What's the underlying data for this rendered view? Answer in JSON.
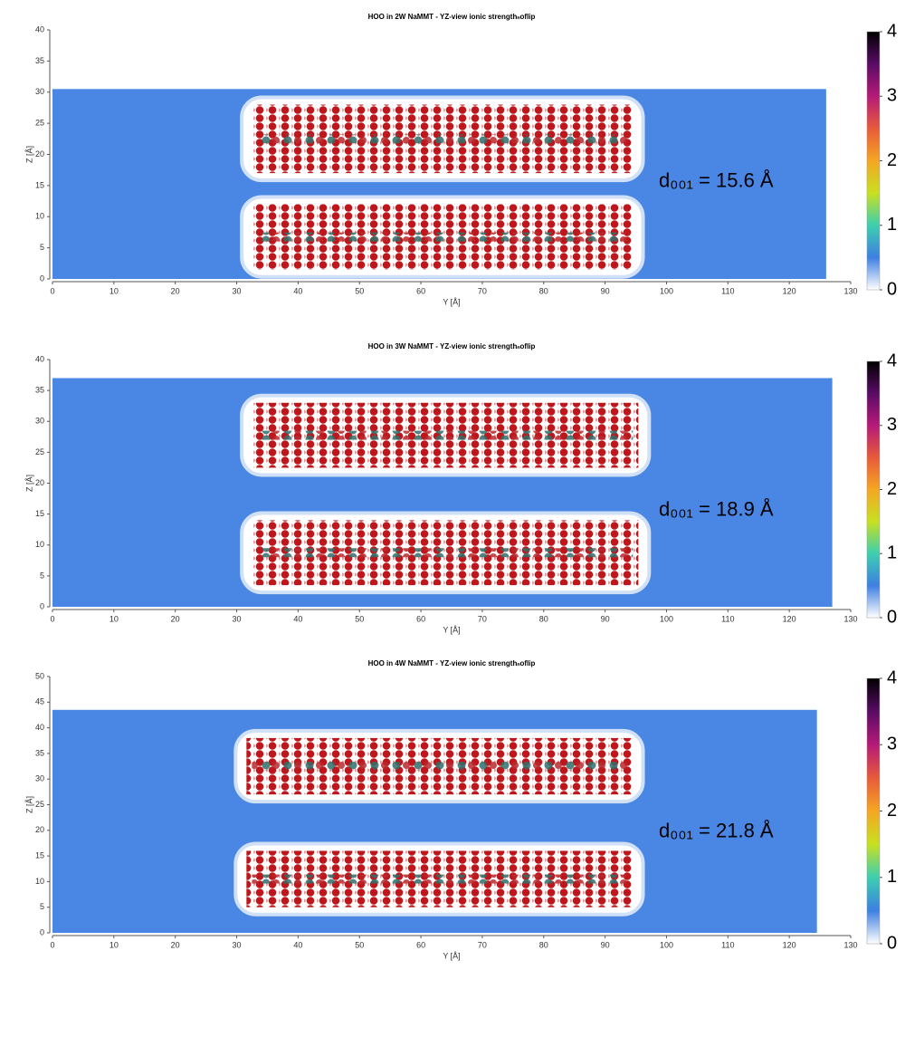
{
  "chart_data": [
    {
      "type": "heatmap",
      "title": "HOO in 2W NaMMT - YZ-view  ionic strengthₙoflip",
      "x_label": "Y [Å]",
      "y_label": "Z [Å]",
      "xlim": [
        0,
        130
      ],
      "ylim": [
        0,
        40
      ],
      "xticks": [
        0,
        10,
        20,
        30,
        40,
        50,
        60,
        70,
        80,
        90,
        100,
        110,
        120,
        130
      ],
      "yticks": [
        0,
        5,
        10,
        15,
        20,
        25,
        30,
        35,
        40
      ],
      "x_extent": [
        0,
        126
      ],
      "y_extent": [
        0,
        30.5
      ],
      "layers": [
        {
          "x": [
            32,
            95
          ],
          "y": [
            17,
            28
          ]
        },
        {
          "x": [
            32,
            95
          ],
          "y": [
            1.5,
            12
          ]
        }
      ],
      "annotation": "d₀₀₁ = 15.6 Å",
      "colorbar": {
        "lim": [
          0,
          4
        ],
        "ticks": [
          0,
          1,
          2,
          3,
          4
        ]
      }
    },
    {
      "type": "heatmap",
      "title": "HOO in 3W NaMMT - YZ-view  ionic strengthₙoflip",
      "x_label": "Y [Å]",
      "y_label": "Z [Å]",
      "xlim": [
        0,
        130
      ],
      "ylim": [
        0,
        40
      ],
      "xticks": [
        0,
        10,
        20,
        30,
        40,
        50,
        60,
        70,
        80,
        90,
        100,
        110,
        120,
        130
      ],
      "yticks": [
        0,
        5,
        10,
        15,
        20,
        25,
        30,
        35,
        40
      ],
      "x_extent": [
        0,
        127
      ],
      "y_extent": [
        0,
        37
      ],
      "layers": [
        {
          "x": [
            32,
            96
          ],
          "y": [
            22.5,
            33
          ]
        },
        {
          "x": [
            32,
            96
          ],
          "y": [
            3.5,
            14
          ]
        }
      ],
      "annotation": "d₀₀₁ = 18.9 Å",
      "colorbar": {
        "lim": [
          0,
          4
        ],
        "ticks": [
          0,
          1,
          2,
          3,
          4
        ]
      }
    },
    {
      "type": "heatmap",
      "title": "HOO in 4W NaMMT - YZ-view  ionic strengthₙoflip",
      "x_label": "Y [Å]",
      "y_label": "Z [Å]",
      "xlim": [
        0,
        130
      ],
      "ylim": [
        0,
        50
      ],
      "xticks": [
        0,
        10,
        20,
        30,
        40,
        50,
        60,
        70,
        80,
        90,
        100,
        110,
        120,
        130
      ],
      "yticks": [
        0,
        5,
        10,
        15,
        20,
        25,
        30,
        35,
        40,
        45,
        50
      ],
      "x_extent": [
        0,
        124.5
      ],
      "y_extent": [
        0,
        43.5
      ],
      "layers": [
        {
          "x": [
            31,
            95
          ],
          "y": [
            27,
            38
          ]
        },
        {
          "x": [
            31,
            95
          ],
          "y": [
            5,
            16
          ]
        }
      ],
      "annotation": "d₀₀₁ = 21.8 Å",
      "colorbar": {
        "lim": [
          0,
          4
        ],
        "ticks": [
          0,
          1,
          2,
          3,
          4
        ]
      }
    }
  ],
  "colormap": [
    "#ffffff",
    "#3d7fe2",
    "#3ccfb0",
    "#c8e020",
    "#f5a623",
    "#e85a3a",
    "#b51a78",
    "#5a0b66",
    "#000000"
  ],
  "field_color": "#4a86e3"
}
